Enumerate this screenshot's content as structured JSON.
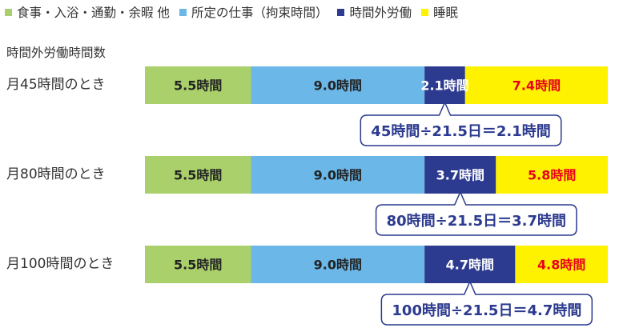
{
  "legend": {
    "items": [
      {
        "label": "食事・入浴・通勤・余暇 他",
        "color": "#a9d06b"
      },
      {
        "label": "所定の仕事（拘束時間）",
        "color": "#6ab7e8"
      },
      {
        "label": "時間外労働",
        "color": "#2c3a8f"
      },
      {
        "label": "睡眠",
        "color": "#fff200"
      }
    ]
  },
  "section_label": "時間外労働時間数",
  "chart_data": {
    "type": "bar",
    "orientation": "horizontal",
    "stacked": true,
    "title": "",
    "xlabel": "",
    "ylabel": "時間外労働時間数",
    "xlim": [
      0,
      24
    ],
    "unit": "時間",
    "categories": [
      "月45時間のとき",
      "月80時間のとき",
      "月100時間のとき"
    ],
    "series": [
      {
        "name": "食事・入浴・通勤・余暇 他",
        "color": "#a9d06b",
        "label_color": "#222222",
        "values": [
          5.5,
          5.5,
          5.5
        ],
        "labels": [
          "5.5時間",
          "5.5時間",
          "5.5時間"
        ]
      },
      {
        "name": "所定の仕事（拘束時間）",
        "color": "#6ab7e8",
        "label_color": "#222222",
        "values": [
          9.0,
          9.0,
          9.0
        ],
        "labels": [
          "9.0時間",
          "9.0時間",
          "9.0時間"
        ]
      },
      {
        "name": "時間外労働",
        "color": "#2c3a8f",
        "label_color": "#ffffff",
        "values": [
          2.1,
          3.7,
          4.7
        ],
        "labels": [
          "2.1時間",
          "3.7時間",
          "4.7時間"
        ]
      },
      {
        "name": "睡眠",
        "color": "#fff200",
        "label_color": "#e8001c",
        "values": [
          7.4,
          5.8,
          4.8
        ],
        "labels": [
          "7.4時間",
          "5.8時間",
          "4.8時間"
        ]
      }
    ],
    "callouts": [
      "45時間÷21.5日＝2.1時間",
      "80時間÷21.5日＝3.7時間",
      "100時間÷21.5日＝4.7時間"
    ],
    "callout_color": "#2c3a8f"
  }
}
